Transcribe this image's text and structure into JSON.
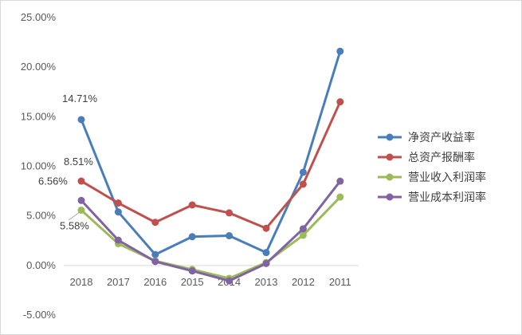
{
  "chart_data": {
    "type": "line",
    "categories": [
      "2018",
      "2017",
      "2016",
      "2015",
      "2014",
      "2013",
      "2012",
      "2011"
    ],
    "series": [
      {
        "name": "净资产收益率",
        "color": "#4a7ebb",
        "values": [
          14.71,
          5.4,
          1.1,
          2.9,
          3.0,
          1.3,
          9.4,
          21.6
        ]
      },
      {
        "name": "总资产报酬率",
        "color": "#c0504d",
        "values": [
          8.51,
          6.3,
          4.35,
          6.1,
          5.3,
          3.75,
          8.2,
          16.5
        ]
      },
      {
        "name": "营业收入利润率",
        "color": "#9bbb59",
        "values": [
          5.58,
          2.2,
          0.45,
          -0.4,
          -1.3,
          0.3,
          3.05,
          6.9
        ]
      },
      {
        "name": "营业成本利润率",
        "color": "#8064a2",
        "values": [
          6.56,
          2.55,
          0.4,
          -0.55,
          -1.55,
          0.2,
          3.7,
          8.5
        ]
      }
    ],
    "y_ticks": [
      "25.00%",
      "20.00%",
      "15.00%",
      "10.00%",
      "5.00%",
      "0.00%",
      "-5.00%"
    ],
    "ylim": [
      -5,
      25
    ],
    "grid": false,
    "legend_position": "right",
    "data_labels": [
      {
        "series": 0,
        "index": 0,
        "text": "14.71%"
      },
      {
        "series": 1,
        "index": 0,
        "text": "8.51%"
      },
      {
        "series": 3,
        "index": 0,
        "text": "6.56%"
      },
      {
        "series": 2,
        "index": 0,
        "text": "5.58%"
      }
    ]
  }
}
